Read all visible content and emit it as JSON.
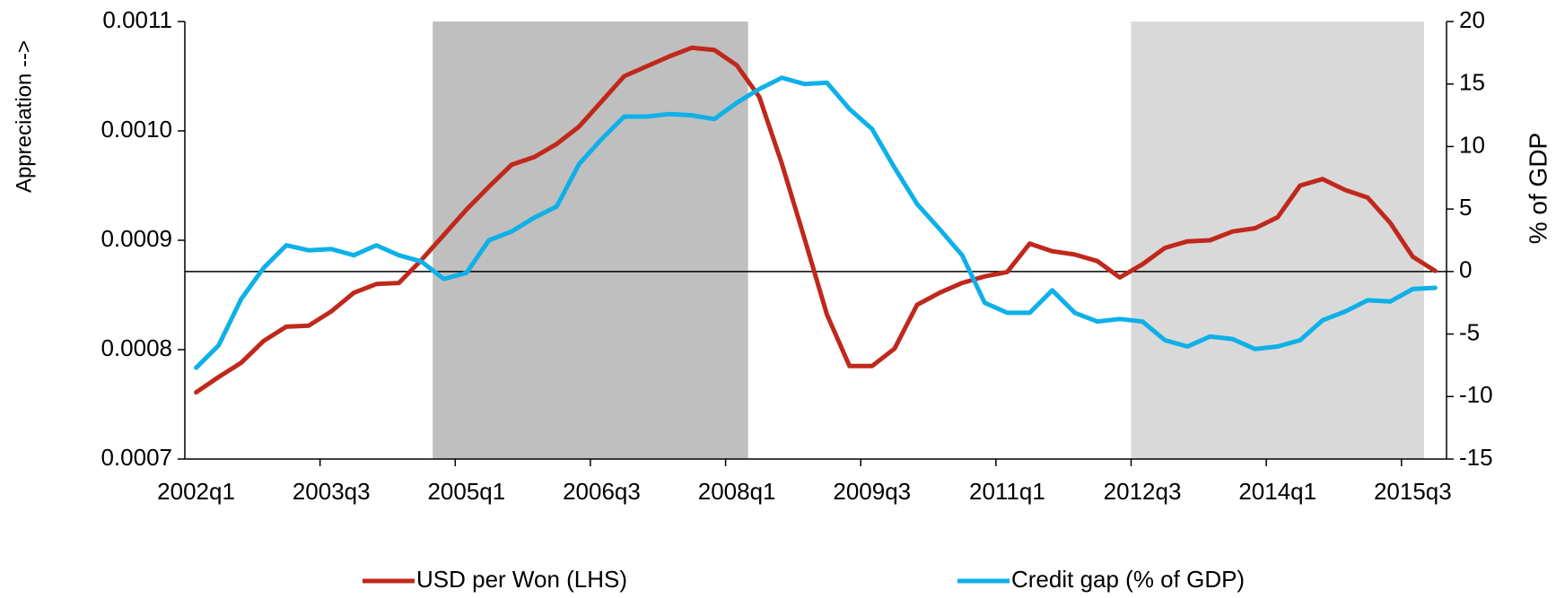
{
  "chart_data": {
    "type": "line",
    "categories": [
      "2002q1",
      null,
      null,
      null,
      null,
      null,
      "2003q3",
      null,
      null,
      null,
      null,
      null,
      "2005q1",
      null,
      null,
      null,
      null,
      null,
      "2006q3",
      null,
      null,
      null,
      null,
      null,
      "2008q1",
      null,
      null,
      null,
      null,
      null,
      "2009q3",
      null,
      null,
      null,
      null,
      null,
      "2011q1",
      null,
      null,
      null,
      null,
      null,
      "2012q3",
      null,
      null,
      null,
      null,
      null,
      "2014q1",
      null,
      null,
      null,
      null,
      null,
      "2015q3",
      null
    ],
    "series": [
      {
        "name": "USD per Won (LHS)",
        "color": "#c0281c",
        "axis": "y",
        "values": [
          0.000761,
          0.000775,
          0.000788,
          0.000808,
          0.000821,
          0.000822,
          0.000835,
          0.000852,
          0.00086,
          0.000861,
          0.000882,
          0.000905,
          0.000928,
          0.000949,
          0.000969,
          0.000976,
          0.000988,
          0.001004,
          0.001027,
          0.00105,
          0.001059,
          0.001068,
          0.001076,
          0.001074,
          0.00106,
          0.001031,
          0.00097,
          0.000902,
          0.000832,
          0.000785,
          0.000785,
          0.000801,
          0.000841,
          0.000852,
          0.000861,
          0.000867,
          0.000871,
          0.000897,
          0.00089,
          0.000887,
          0.000881,
          0.000866,
          0.000878,
          0.000893,
          0.000899,
          0.0009,
          0.000908,
          0.000911,
          0.000921,
          0.00095,
          0.000956,
          0.000946,
          0.000939,
          0.000916,
          0.000885,
          0.000872
        ]
      },
      {
        "name": "Credit gap (% of GDP)",
        "color": "#0eb0e8",
        "axis": "y2",
        "values": [
          -7.7,
          -5.9,
          -2.2,
          0.3,
          2.1,
          1.7,
          1.8,
          1.3,
          2.1,
          1.3,
          0.8,
          -0.6,
          -0.1,
          2.5,
          3.2,
          4.3,
          5.2,
          8.6,
          10.6,
          12.4,
          12.4,
          12.6,
          12.5,
          12.2,
          13.5,
          14.6,
          15.5,
          15.0,
          15.1,
          13.0,
          11.4,
          8.3,
          5.4,
          3.4,
          1.3,
          -2.5,
          -3.3,
          -3.3,
          -1.5,
          -3.3,
          -4.0,
          -3.8,
          -4.0,
          -5.5,
          -6.0,
          -5.2,
          -5.4,
          -6.2,
          -6.0,
          -5.5,
          -3.9,
          -3.2,
          -2.3,
          -2.4,
          -1.4,
          -1.3
        ]
      }
    ],
    "y_label": "Appreciation -->",
    "y2_label": "% of GDP",
    "ylim": [
      0.0007,
      0.0011
    ],
    "yticks": [
      0.0007,
      0.0008,
      0.0009,
      {
        "value": 0.001,
        "label": "0.0010"
      },
      0.0011
    ],
    "y2lim": [
      -15,
      20
    ],
    "y2ticks": [
      -15,
      -10,
      -5,
      0,
      5,
      10,
      15,
      20
    ],
    "shaded_periods": [
      {
        "start": 11,
        "end": 24,
        "color": "#bfbfbf"
      },
      {
        "start": 42,
        "end": 54,
        "color": "#d9d9d9"
      }
    ],
    "legend": "bottom"
  }
}
